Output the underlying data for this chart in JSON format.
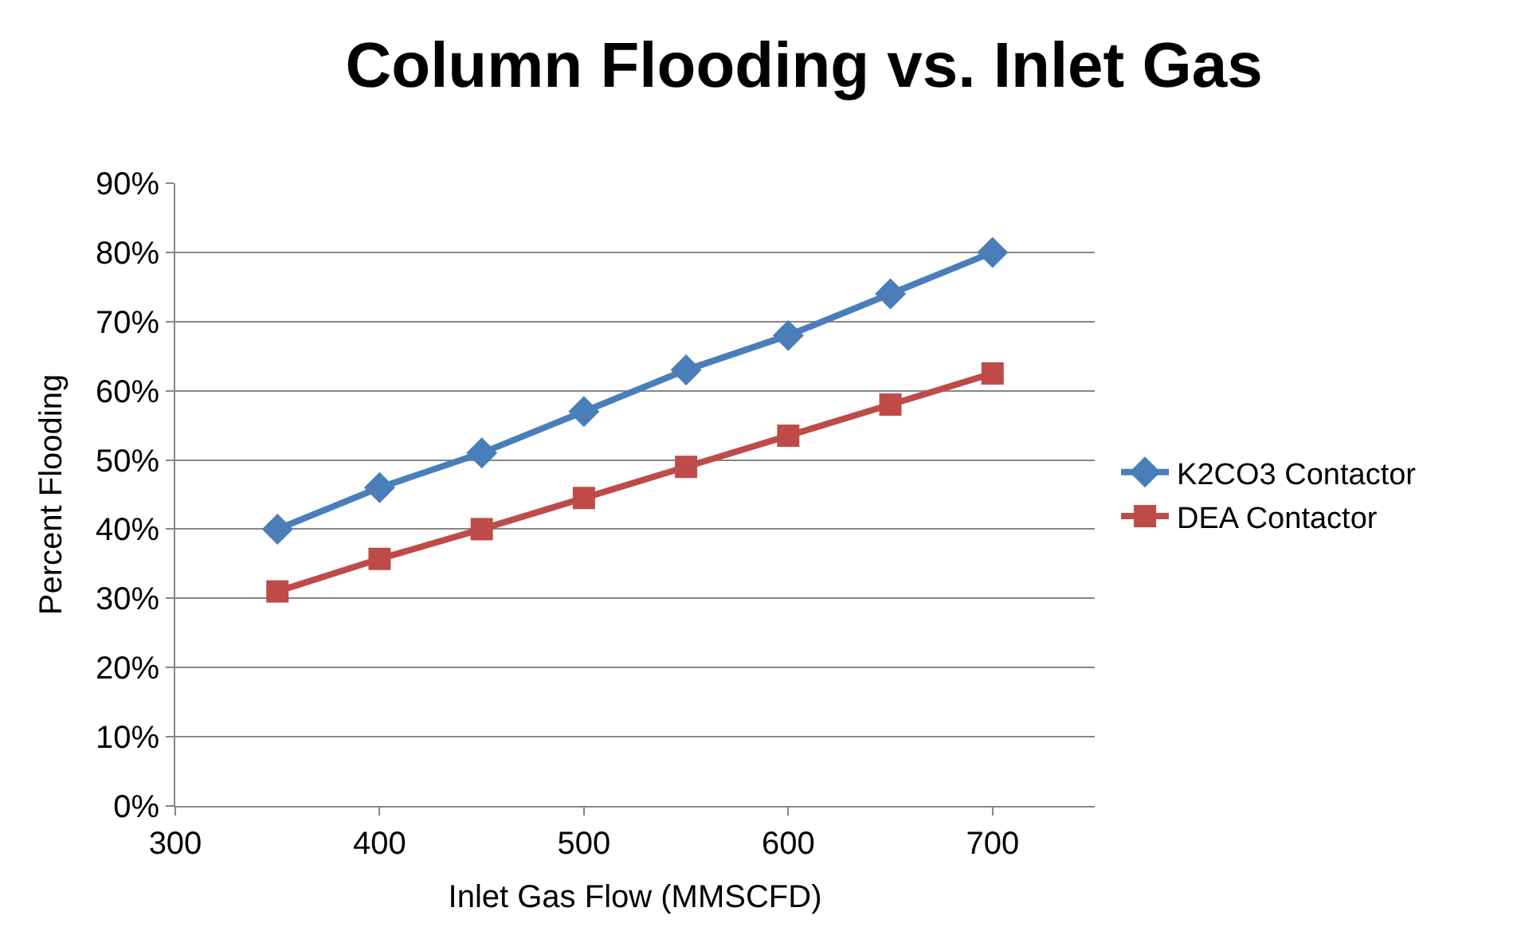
{
  "chart_data": {
    "type": "line",
    "title": "Column Flooding vs. Inlet Gas",
    "xlabel": "Inlet Gas Flow (MMSCFD)",
    "ylabel": "Percent Flooding",
    "x": [
      350,
      400,
      450,
      500,
      550,
      600,
      650,
      700
    ],
    "series": [
      {
        "name": "K2CO3 Contactor",
        "color": "#4a7ebb",
        "marker": "diamond",
        "values": [
          40,
          46,
          51,
          57,
          63,
          68,
          74,
          80
        ]
      },
      {
        "name": "DEA Contactor",
        "color": "#be4b48",
        "marker": "square",
        "values": [
          31,
          35.7,
          40,
          44.5,
          49,
          53.5,
          58,
          62.5
        ]
      }
    ],
    "xlim": [
      300,
      750
    ],
    "xticks": [
      300,
      400,
      500,
      600,
      700
    ],
    "ylim": [
      0,
      90
    ],
    "yticks": [
      {
        "value": 0,
        "label": "0%"
      },
      {
        "value": 10,
        "label": "10%"
      },
      {
        "value": 20,
        "label": "20%"
      },
      {
        "value": 30,
        "label": "30%"
      },
      {
        "value": 40,
        "label": "40%"
      },
      {
        "value": 50,
        "label": "50%"
      },
      {
        "value": 60,
        "label": "60%"
      },
      {
        "value": 70,
        "label": "70%"
      },
      {
        "value": 80,
        "label": "80%"
      },
      {
        "value": 90,
        "label": "90%"
      }
    ],
    "grid": "y",
    "legend": "right",
    "line_style": "solid"
  }
}
